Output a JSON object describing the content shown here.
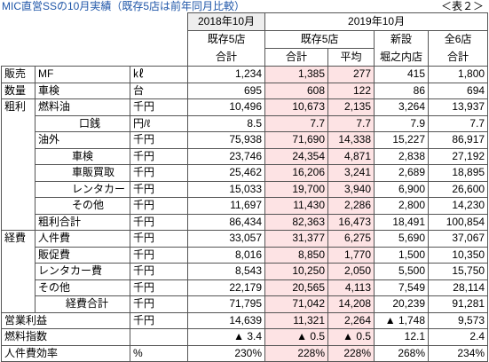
{
  "header": {
    "title": "MIC直営SSの10月実績（既存5店は前年同月比較）",
    "label": "＜表２＞"
  },
  "table": {
    "periods": [
      "2018年10月",
      "2019年10月"
    ],
    "groups": [
      "既存5店",
      "既存5店",
      "新設",
      "全6店"
    ],
    "columns": [
      "合計",
      "合計",
      "平均",
      "堀之内店",
      "合計"
    ],
    "rows": [
      {
        "group": "販売",
        "item": "MF",
        "unit": "㎘",
        "values": [
          "1,234",
          "1,385",
          "277",
          "415",
          "1,800"
        ]
      },
      {
        "group": "数量",
        "item": "車検",
        "unit": "台",
        "values": [
          "695",
          "608",
          "122",
          "86",
          "694"
        ]
      },
      {
        "group": "粗利",
        "item": "燃料油",
        "unit": "千円",
        "values": [
          "10,496",
          "10,673",
          "2,135",
          "3,264",
          "13,937"
        ]
      },
      {
        "item": "口銭",
        "unit": "円/ℓ",
        "values": [
          "8.5",
          "7.7",
          "7.7",
          "7.9",
          "7.7"
        ]
      },
      {
        "item": "油外",
        "unit": "千円",
        "values": [
          "75,938",
          "71,690",
          "14,338",
          "15,227",
          "86,917"
        ]
      },
      {
        "item": "車検",
        "unit": "千円",
        "values": [
          "23,746",
          "24,354",
          "4,871",
          "2,838",
          "27,192"
        ]
      },
      {
        "item": "車販買取",
        "unit": "千円",
        "values": [
          "25,462",
          "16,206",
          "3,241",
          "2,689",
          "18,895"
        ]
      },
      {
        "item": "レンタカー",
        "unit": "千円",
        "values": [
          "15,033",
          "19,700",
          "3,940",
          "6,900",
          "26,600"
        ]
      },
      {
        "item": "その他",
        "unit": "千円",
        "values": [
          "11,697",
          "11,430",
          "2,286",
          "2,800",
          "14,230"
        ]
      },
      {
        "item": "粗利合計",
        "unit": "千円",
        "values": [
          "86,434",
          "82,363",
          "16,473",
          "18,491",
          "100,854"
        ]
      },
      {
        "group": "経費",
        "item": "人件費",
        "unit": "千円",
        "values": [
          "33,057",
          "31,377",
          "6,275",
          "5,690",
          "37,067"
        ]
      },
      {
        "item": "販促費",
        "unit": "千円",
        "values": [
          "8,016",
          "8,850",
          "1,770",
          "1,500",
          "10,350"
        ]
      },
      {
        "item": "レンタカー費",
        "unit": "千円",
        "values": [
          "8,543",
          "10,250",
          "2,050",
          "5,500",
          "15,750"
        ]
      },
      {
        "item": "その他",
        "unit": "千円",
        "values": [
          "22,179",
          "20,565",
          "4,113",
          "7,549",
          "28,114"
        ]
      },
      {
        "item": "経費合計",
        "unit": "千円",
        "values": [
          "71,795",
          "71,042",
          "14,208",
          "20,239",
          "91,281"
        ]
      },
      {
        "item": "営業利益",
        "unit": "千円",
        "values": [
          "14,639",
          "11,321",
          "2,264",
          "▲ 1,748",
          "9,573"
        ]
      },
      {
        "item": "燃料指数",
        "values": [
          "▲ 3.4",
          "▲ 0.5",
          "▲ 0.5",
          "12.1",
          "2.4"
        ]
      },
      {
        "item": "人件費効率",
        "unit": "%",
        "values": [
          "230%",
          "228%",
          "228%",
          "268%",
          "234%"
        ]
      }
    ]
  }
}
